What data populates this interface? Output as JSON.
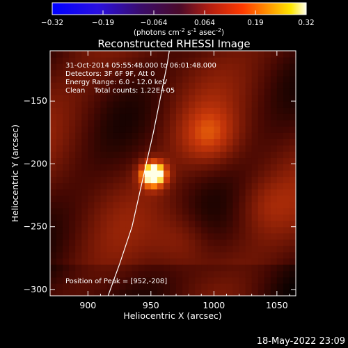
{
  "colorbar": {
    "min": -0.32,
    "max": 0.32,
    "tick_labels": [
      "-0.32",
      "-0.19",
      "-0.064",
      "0.064",
      "0.19",
      "0.32"
    ],
    "unit_text": "(photons cm",
    "unit_sup1": "-2",
    "unit_mid": " s",
    "unit_sup2": "-1",
    "unit_mid2": " asec",
    "unit_sup3": "-2",
    "unit_end": ")"
  },
  "annotations": {
    "time_range": "31-Oct-2014 05:55:48.000 to 06:01:48.000",
    "detectors": "Detectors: 3F 6F 9F, Att 0",
    "energy": "Energy Range: 6.0 - 12.0 keV",
    "counts": "Clean    Total counts: 1.22E+05",
    "peak": "Position of Peak = [952,-208]"
  },
  "footer": {
    "timestamp": "18-May-2022 23:09"
  },
  "chart_data": {
    "type": "heatmap",
    "title": "Reconstructed RHESSI Image",
    "xlabel": "Heliocentric X (arcsec)",
    "ylabel": "Heliocentric Y (arcsec)",
    "xlim": [
      870,
      1065
    ],
    "ylim": [
      -305,
      -110
    ],
    "x_ticks": [
      900,
      950,
      1000,
      1050
    ],
    "y_ticks": [
      -150,
      -200,
      -250,
      -300
    ],
    "colormap": "red-temperature",
    "peak_value": 0.32,
    "peak_position": [
      952,
      -208
    ],
    "secondary_sources": [
      {
        "x": 997,
        "y": -178,
        "value": 0.09
      },
      {
        "x": 975,
        "y": -262,
        "value": 0.06
      },
      {
        "x": 1040,
        "y": -232,
        "value": 0.04
      }
    ],
    "limb_curve": [
      {
        "x": 916,
        "y": -305
      },
      {
        "x": 925,
        "y": -280
      },
      {
        "x": 935,
        "y": -250
      },
      {
        "x": 944,
        "y": -210
      },
      {
        "x": 952,
        "y": -175
      },
      {
        "x": 958,
        "y": -145
      },
      {
        "x": 963,
        "y": -120
      },
      {
        "x": 967,
        "y": -95
      }
    ]
  }
}
